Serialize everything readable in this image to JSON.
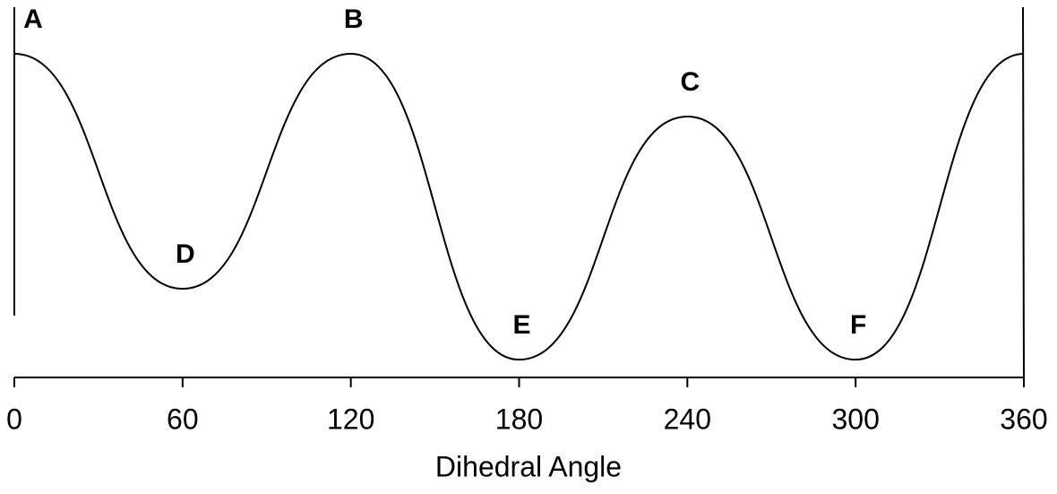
{
  "chart_data": {
    "type": "line",
    "xlabel": "Dihedral Angle",
    "x": [
      0,
      60,
      120,
      180,
      240,
      300,
      360
    ],
    "values": [
      100,
      27.4,
      100,
      5.5,
      80.6,
      5.5,
      100
    ],
    "point_labels": [
      "A",
      "D",
      "B",
      "E",
      "C",
      "F",
      null
    ],
    "color": "#000000",
    "xlim": [
      0,
      360
    ],
    "xticks": [
      0,
      60,
      120,
      180,
      240,
      300,
      360
    ],
    "ylim": [
      0,
      100
    ]
  }
}
